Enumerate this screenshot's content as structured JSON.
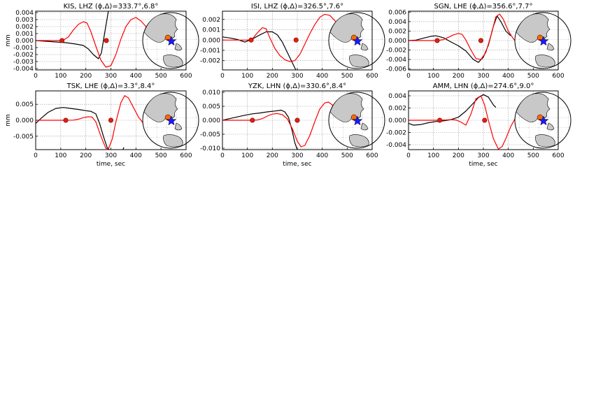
{
  "figure": {
    "xlabel": "time, sec",
    "ylabel": "mm",
    "colors": {
      "observed": "#000000",
      "synthetic": "#ff0000",
      "marker": "#e02010",
      "globe_land": "#c8c8c8",
      "globe_ocean": "#ffffff",
      "event_star": "#1a1aff",
      "station_dot": "#ff6a00"
    }
  },
  "chart_data": [
    {
      "type": "line",
      "title": "KIS, LHZ (ϕ,Δ)=333.7°,6.8°",
      "xlim": [
        0,
        600
      ],
      "ylim": [
        -0.0042,
        0.0042
      ],
      "xticks": [
        "0",
        "100",
        "200",
        "300",
        "400",
        "500",
        "600"
      ],
      "yticks": [
        "0.004",
        "0.003",
        "0.002",
        "0.001",
        "0.000",
        "-0.001",
        "-0.002",
        "-0.003",
        "-0.004"
      ],
      "ytick_values": [
        0.004,
        0.003,
        0.002,
        0.001,
        0,
        -0.001,
        -0.002,
        -0.003,
        -0.004
      ],
      "ylabel": "mm",
      "xlabel": "",
      "series": [
        {
          "role": "observed",
          "x": [
            0,
            40,
            80,
            120,
            160,
            190,
            210,
            230,
            250,
            262,
            275,
            290,
            300
          ],
          "y": [
            0,
            -0.0001,
            -0.0002,
            -0.0003,
            -0.0005,
            -0.0007,
            -0.0012,
            -0.002,
            -0.0026,
            -0.0018,
            0.001,
            0.0042,
            0.0046
          ]
        },
        {
          "role": "synthetic",
          "x": [
            0,
            90,
            110,
            130,
            150,
            170,
            190,
            205,
            220,
            240,
            260,
            280,
            300,
            320,
            340,
            360,
            380,
            400,
            420,
            440,
            460,
            480,
            500
          ],
          "y": [
            0,
            0,
            5e-05,
            0.0005,
            0.0015,
            0.0023,
            0.0027,
            0.0025,
            0.0013,
            -0.0008,
            -0.0028,
            -0.0038,
            -0.0036,
            -0.002,
            0.0002,
            0.002,
            0.003,
            0.0033,
            0.0028,
            0.002,
            0.001,
            0.0006,
            0.0004
          ]
        }
      ],
      "markers": [
        {
          "x": 105,
          "y": 0
        },
        {
          "x": 282,
          "y": 0
        }
      ]
    },
    {
      "type": "line",
      "title": "ISI, LHZ (ϕ,Δ)=326.5°,7.6°",
      "xlim": [
        0,
        600
      ],
      "ylim": [
        -0.0029,
        0.0028
      ],
      "xticks": [
        "0",
        "100",
        "200",
        "300",
        "400",
        "500",
        "600"
      ],
      "yticks": [
        "0.002",
        "0.001",
        "0.000",
        "-0.001",
        "-0.002"
      ],
      "ytick_values": [
        0.002,
        0.001,
        0,
        -0.001,
        -0.002
      ],
      "ylabel": "",
      "xlabel": "",
      "series": [
        {
          "role": "observed",
          "x": [
            0,
            30,
            60,
            90,
            120,
            150,
            175,
            200,
            220,
            240,
            260,
            280,
            300,
            320
          ],
          "y": [
            0.0003,
            0.0002,
            5e-05,
            -0.0002,
            0.0001,
            0.0005,
            0.0008,
            0.0008,
            0.0005,
            -0.0002,
            -0.0012,
            -0.0022,
            -0.0032,
            -0.004
          ]
        },
        {
          "role": "synthetic",
          "x": [
            0,
            100,
            120,
            140,
            160,
            175,
            190,
            210,
            230,
            250,
            270,
            290,
            310,
            330,
            350,
            370,
            390,
            410,
            430,
            450,
            470,
            490,
            510
          ],
          "y": [
            0,
            0,
            0.0001,
            0.0007,
            0.0012,
            0.0011,
            0.0002,
            -0.0008,
            -0.0015,
            -0.0019,
            -0.0021,
            -0.002,
            -0.0014,
            -0.0004,
            0.0006,
            0.0015,
            0.0022,
            0.0025,
            0.0024,
            0.0019,
            0.0013,
            0.0008,
            0.0005
          ]
        }
      ],
      "markers": [
        {
          "x": 115,
          "y": 0
        },
        {
          "x": 295,
          "y": 0
        }
      ]
    },
    {
      "type": "line",
      "title": "SGN, LHE (ϕ,Δ)=356.6°,7.7°",
      "xlim": [
        0,
        600
      ],
      "ylim": [
        -0.0062,
        0.0062
      ],
      "xticks": [
        "0",
        "100",
        "200",
        "300",
        "400",
        "500",
        "600"
      ],
      "yticks": [
        "0.006",
        "0.004",
        "0.002",
        "0.000",
        "-0.002",
        "-0.004",
        "-0.006"
      ],
      "ytick_values": [
        0.006,
        0.004,
        0.002,
        0,
        -0.002,
        -0.004,
        -0.006
      ],
      "ylabel": "",
      "xlabel": "",
      "series": [
        {
          "role": "observed",
          "x": [
            0,
            30,
            60,
            90,
            110,
            140,
            170,
            200,
            230,
            260,
            280,
            300,
            320,
            340,
            355,
            370,
            390,
            410
          ],
          "y": [
            0,
            0.0001,
            0.0005,
            0.0009,
            0.001,
            0.0006,
            -0.0003,
            -0.0011,
            -0.0022,
            -0.004,
            -0.0046,
            -0.0035,
            -0.001,
            0.003,
            0.0052,
            0.004,
            0.002,
            0.001
          ]
        },
        {
          "role": "synthetic",
          "x": [
            0,
            100,
            120,
            140,
            160,
            180,
            200,
            215,
            230,
            250,
            270,
            290,
            310,
            330,
            350,
            365,
            380,
            400,
            420,
            440,
            460,
            480,
            500
          ],
          "y": [
            0,
            0,
            5e-05,
            0.0002,
            0.0007,
            0.0012,
            0.0015,
            0.0013,
            0.0001,
            -0.002,
            -0.0038,
            -0.004,
            -0.0025,
            0.001,
            0.005,
            0.0056,
            0.0045,
            0.002,
            0.0004,
            -0.0008,
            -0.001,
            -0.0006,
            -0.0002
          ]
        }
      ],
      "markers": [
        {
          "x": 115,
          "y": 0
        },
        {
          "x": 290,
          "y": 0
        }
      ]
    },
    {
      "type": "line",
      "title": "TSK, LHE (ϕ,Δ)=3.3°,8.4°",
      "xlim": [
        0,
        600
      ],
      "ylim": [
        -0.0092,
        0.0092
      ],
      "xticks": [
        "0",
        "100",
        "200",
        "300",
        "400",
        "500",
        "600"
      ],
      "yticks": [
        "0.005",
        "0.000",
        "-0.005"
      ],
      "ytick_values": [
        0.005,
        0,
        -0.005
      ],
      "ylabel": "mm",
      "xlabel": "time, sec",
      "series": [
        {
          "role": "observed",
          "x": [
            0,
            20,
            50,
            80,
            110,
            140,
            170,
            200,
            220,
            240,
            255,
            270,
            285,
            300
          ],
          "y": [
            -0.001,
            0.0005,
            0.0025,
            0.0037,
            0.004,
            0.0037,
            0.0034,
            0.003,
            0.0028,
            0.002,
            -0.001,
            -0.005,
            -0.0085,
            -0.0098
          ]
        },
        {
          "role": "observed_tail",
          "x": [
            345,
            352
          ],
          "y": [
            -0.0098,
            -0.0085
          ]
        },
        {
          "role": "synthetic",
          "x": [
            0,
            120,
            150,
            170,
            190,
            210,
            225,
            240,
            260,
            280,
            290,
            305,
            320,
            340,
            355,
            370,
            390,
            410,
            430,
            450,
            470,
            500
          ],
          "y": [
            0,
            0,
            5e-05,
            0.0003,
            0.0008,
            0.0011,
            0.001,
            -0.0005,
            -0.005,
            -0.0088,
            -0.009,
            -0.006,
            -0.0005,
            0.0055,
            0.0077,
            0.007,
            0.004,
            0.001,
            -0.001,
            -0.0016,
            -0.0012,
            -0.0005
          ]
        }
      ],
      "markers": [
        {
          "x": 120,
          "y": 0
        },
        {
          "x": 300,
          "y": 0
        }
      ]
    },
    {
      "type": "line",
      "title": "YZK, LHN (ϕ,Δ)=330.6°,8.4°",
      "xlim": [
        0,
        600
      ],
      "ylim": [
        -0.0105,
        0.0105
      ],
      "xticks": [
        "0",
        "100",
        "200",
        "300",
        "400",
        "500",
        "600"
      ],
      "yticks": [
        "0.010",
        "0.005",
        "0.000",
        "-0.005",
        "-0.010"
      ],
      "ytick_values": [
        0.01,
        0.005,
        0,
        -0.005,
        -0.01
      ],
      "ylabel": "",
      "xlabel": "time, sec",
      "series": [
        {
          "role": "observed",
          "x": [
            0,
            30,
            60,
            90,
            120,
            150,
            180,
            210,
            235,
            250,
            265,
            280,
            290,
            300
          ],
          "y": [
            0,
            0.0006,
            0.0012,
            0.0018,
            0.0023,
            0.0026,
            0.003,
            0.0033,
            0.0036,
            0.003,
            0.001,
            -0.004,
            -0.008,
            -0.0105
          ]
        },
        {
          "role": "synthetic",
          "x": [
            0,
            115,
            140,
            160,
            180,
            200,
            220,
            240,
            260,
            280,
            300,
            315,
            330,
            350,
            370,
            390,
            410,
            425,
            440,
            460,
            480,
            500
          ],
          "y": [
            0,
            0,
            0.0001,
            0.0006,
            0.0015,
            0.0022,
            0.0024,
            0.002,
            0.0005,
            -0.003,
            -0.0075,
            -0.0095,
            -0.009,
            -0.0055,
            -0.0005,
            0.004,
            0.0062,
            0.0065,
            0.0055,
            0.0035,
            0.0015,
            0.0005
          ]
        }
      ],
      "markers": [
        {
          "x": 120,
          "y": 0
        },
        {
          "x": 300,
          "y": 0
        }
      ]
    },
    {
      "type": "line",
      "title": "AMM, LHN (ϕ,Δ)=274.6°,9.0°",
      "xlim": [
        0,
        600
      ],
      "ylim": [
        -0.0048,
        0.0048
      ],
      "xticks": [
        "0",
        "100",
        "200",
        "300",
        "400",
        "500",
        "600"
      ],
      "yticks": [
        "0.004",
        "0.002",
        "0.000",
        "-0.002",
        "-0.004"
      ],
      "ytick_values": [
        0.004,
        0.002,
        0,
        -0.002,
        -0.004
      ],
      "ylabel": "",
      "xlabel": "time, sec",
      "series": [
        {
          "role": "observed",
          "x": [
            0,
            20,
            50,
            80,
            110,
            140,
            170,
            200,
            230,
            260,
            280,
            300,
            320,
            340,
            350
          ],
          "y": [
            -0.0005,
            -0.0008,
            -0.0007,
            -0.0004,
            -0.0002,
            -0.0001,
            0.0001,
            0.0005,
            0.0015,
            0.0028,
            0.0037,
            0.0042,
            0.0038,
            0.0025,
            0.0021
          ]
        },
        {
          "role": "synthetic",
          "x": [
            0,
            120,
            150,
            170,
            190,
            210,
            230,
            250,
            270,
            290,
            305,
            320,
            340,
            360,
            375,
            390,
            410,
            430,
            450,
            470,
            500
          ],
          "y": [
            0,
            0,
            5e-05,
            0.0001,
            5e-05,
            -0.0003,
            -0.0008,
            0.001,
            0.0035,
            0.004,
            0.0025,
            0.0,
            -0.003,
            -0.0047,
            -0.0043,
            -0.003,
            -0.001,
            0.0005,
            0.0014,
            0.0016,
            0.0012
          ]
        }
      ],
      "markers": [
        {
          "x": 125,
          "y": 0
        },
        {
          "x": 305,
          "y": 0
        }
      ]
    }
  ]
}
